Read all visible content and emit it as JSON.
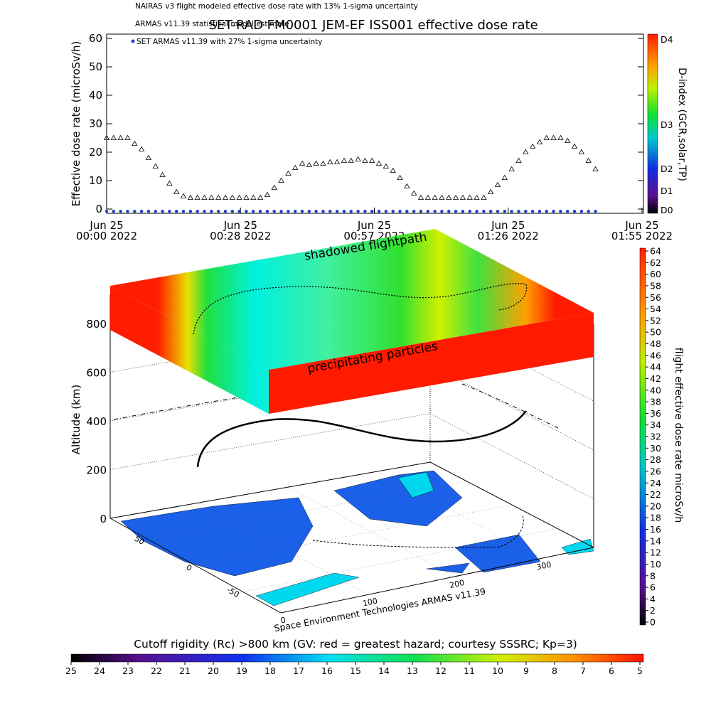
{
  "chart_data": [
    {
      "type": "line",
      "title": "SET-RAD FM0001 JEM-EF ISS001 effective dose rate",
      "annotation": "ARMAS v11.39 statistical model estimate",
      "ylabel": "Effective dose rate (microSv/h)",
      "xlim": [
        0,
        115
      ],
      "ylim": [
        -1.5,
        61.5
      ],
      "xticks": [
        {
          "value": 0,
          "label": "Jun 25\n00:00 2022"
        },
        {
          "value": 28.75,
          "label": "Jun 25\n00:28 2022"
        },
        {
          "value": 57.5,
          "label": "Jun 25\n00:57 2022"
        },
        {
          "value": 86.25,
          "label": "Jun 25\n01:26 2022"
        },
        {
          "value": 115,
          "label": "Jun 25\n01:55 2022"
        }
      ],
      "yticks": [
        0,
        10,
        20,
        30,
        40,
        50,
        60
      ],
      "x": [
        0,
        1.5,
        3,
        4.5,
        6,
        7.5,
        9,
        10.5,
        12,
        13.5,
        15,
        16.5,
        18,
        19.5,
        21,
        22.5,
        24,
        25.5,
        27,
        28.5,
        30,
        31.5,
        33,
        34.5,
        36,
        37.5,
        39,
        40.5,
        42,
        43.5,
        45,
        46.5,
        48,
        49.5,
        51,
        52.5,
        54,
        55.5,
        57,
        58.5,
        60,
        61.5,
        63,
        64.5,
        66,
        67.5,
        69,
        70.5,
        72,
        73.5,
        75,
        76.5,
        78,
        79.5,
        81,
        82.5,
        84,
        85.5,
        87,
        88.5,
        90,
        91.5,
        93,
        94.5,
        96,
        97.5,
        99,
        100.5,
        102,
        103.5,
        105
      ],
      "series": [
        {
          "name": "NAIRAS v3 flight modeled effective dose rate with 13% 1-sigma uncertainty",
          "color": "#000000",
          "marker": "triangle",
          "values": [
            25,
            25,
            25,
            25,
            23,
            21,
            18,
            15,
            12,
            9,
            6,
            4.5,
            4,
            4,
            4,
            4,
            4,
            4,
            4,
            4,
            4,
            4,
            4,
            5,
            7.5,
            10,
            12.5,
            14.5,
            16,
            15.5,
            16,
            16,
            16.5,
            16.5,
            17,
            17,
            17.5,
            17,
            17,
            16,
            15,
            13.5,
            11,
            8,
            5.5,
            4,
            4,
            4,
            4,
            4,
            4,
            4,
            4,
            4,
            4,
            6,
            8.5,
            11,
            14,
            17,
            20,
            22,
            23.5,
            25,
            25,
            25,
            24,
            22,
            20,
            17,
            14
          ]
        },
        {
          "name": "SET ARMAS v11.39 with 27% 1-sigma uncertainty",
          "color": "#1f3fd0",
          "marker": "dot",
          "values": [
            -0.8,
            -0.8,
            -0.8,
            -0.8,
            -0.8,
            -0.8,
            -0.8,
            -0.8,
            -0.8,
            -0.8,
            -0.8,
            -0.8,
            -0.8,
            -0.8,
            -0.8,
            -0.8,
            -0.8,
            -0.8,
            -0.8,
            -0.8,
            -0.8,
            -0.8,
            -0.8,
            -0.8,
            -0.8,
            -0.8,
            -0.8,
            -0.8,
            -0.8,
            -0.8,
            -0.8,
            -0.8,
            -0.8,
            -0.8,
            -0.8,
            -0.8,
            -0.8,
            -0.8,
            -0.8,
            -0.8,
            -0.8,
            -0.8,
            -0.8,
            -0.8,
            -0.8,
            -0.8,
            -0.8,
            -0.8,
            -0.8,
            -0.8,
            -0.8,
            -0.8,
            -0.8,
            -0.8,
            -0.8,
            -0.8,
            -0.8,
            -0.8,
            -0.8,
            -0.8,
            -0.8,
            -0.8,
            -0.8,
            -0.8,
            -0.8,
            -0.8,
            -0.8,
            -0.8,
            -0.8,
            -0.8,
            -0.8
          ]
        }
      ],
      "colorbar": {
        "label": "D-index (GCR,solar,TP)",
        "ticks": [
          "D0",
          "D1",
          "D2",
          "D3",
          "D4"
        ]
      }
    },
    {
      "type": "surface3d",
      "zlabel": "Altitude (km)",
      "zlim": [
        0,
        800
      ],
      "zticks": [
        0,
        200,
        400,
        600,
        800
      ],
      "latlim": [
        90,
        -90
      ],
      "latticks": [
        50,
        0,
        -50
      ],
      "lonlim": [
        0,
        360
      ],
      "lonticks": [
        0,
        100,
        200,
        300
      ],
      "annotations": [
        "shadowed flightpath",
        "precipitating particles"
      ],
      "credit": "Space Environment Technologies ARMAS v11.39",
      "colorbar": {
        "label": "flight effective dose rate microSv/h",
        "lim": [
          0,
          64
        ],
        "ticks": [
          0,
          2,
          4,
          6,
          8,
          10,
          12,
          14,
          16,
          18,
          20,
          22,
          24,
          26,
          28,
          30,
          32,
          34,
          36,
          38,
          40,
          42,
          44,
          46,
          48,
          50,
          52,
          54,
          56,
          58,
          60,
          62,
          64
        ]
      },
      "rigidity_colorbar": {
        "title": "Cutoff rigidity (Rc) >800 km (GV: red = greatest hazard; courtesy SSSRC; Kp=3)",
        "lim": [
          25,
          5
        ],
        "ticks": [
          25,
          24,
          23,
          22,
          21,
          20,
          19,
          18,
          17,
          16,
          15,
          14,
          13,
          12,
          11,
          10,
          9,
          8,
          7,
          6,
          5
        ]
      }
    }
  ]
}
